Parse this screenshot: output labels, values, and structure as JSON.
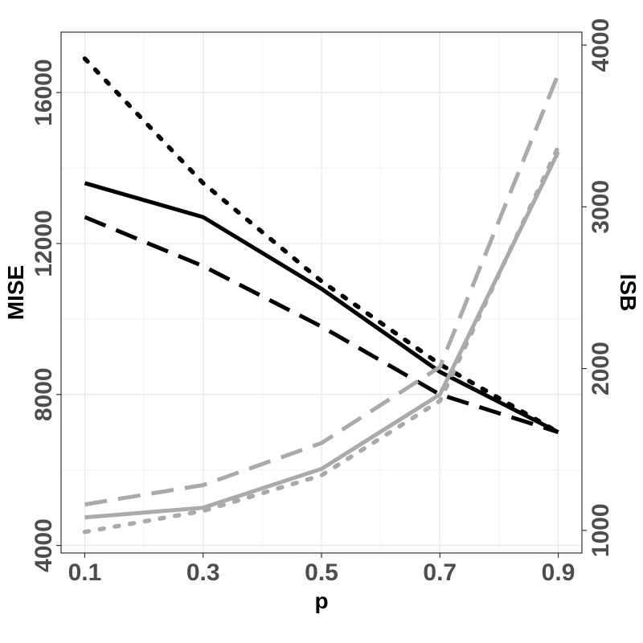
{
  "chart_data": {
    "type": "line",
    "title": "",
    "xlabel": "p",
    "ylabel_left": "MISE",
    "ylabel_right": "ISB",
    "x": [
      0.1,
      0.3,
      0.5,
      0.7,
      0.9
    ],
    "x_ticks": [
      "0.1",
      "0.3",
      "0.5",
      "0.7",
      "0.9"
    ],
    "xlim": [
      0.06,
      0.94
    ],
    "ylim_left": [
      3800,
      17600
    ],
    "ylim_right": [
      860,
      4080
    ],
    "y_ticks_left": [
      "4000",
      "8000",
      "12000",
      "16000"
    ],
    "y_tick_values_left": [
      4000,
      8000,
      12000,
      16000
    ],
    "y_ticks_right": [
      "1000",
      "2000",
      "3000",
      "4000"
    ],
    "y_tick_values_right": [
      1000,
      2000,
      3000,
      4000
    ],
    "grid": true,
    "legend": "none",
    "series": [
      {
        "axis": "left",
        "color": "#000000",
        "linestyle": "solid",
        "values": [
          13600,
          12700,
          10800,
          8600,
          7000
        ]
      },
      {
        "axis": "left",
        "color": "#000000",
        "linestyle": "dashed",
        "values": [
          12700,
          11400,
          9800,
          8000,
          7000
        ]
      },
      {
        "axis": "left",
        "color": "#000000",
        "linestyle": "dotted",
        "values": [
          16900,
          13600,
          11000,
          8800,
          7000
        ]
      },
      {
        "axis": "right",
        "color": "#aaaaaa",
        "linestyle": "solid",
        "values": [
          1080,
          1140,
          1380,
          1840,
          3340
        ]
      },
      {
        "axis": "right",
        "color": "#aaaaaa",
        "linestyle": "dashed",
        "values": [
          1160,
          1280,
          1540,
          2010,
          3820
        ]
      },
      {
        "axis": "right",
        "color": "#aaaaaa",
        "linestyle": "dotted",
        "values": [
          990,
          1120,
          1340,
          1800,
          3370
        ]
      }
    ]
  }
}
